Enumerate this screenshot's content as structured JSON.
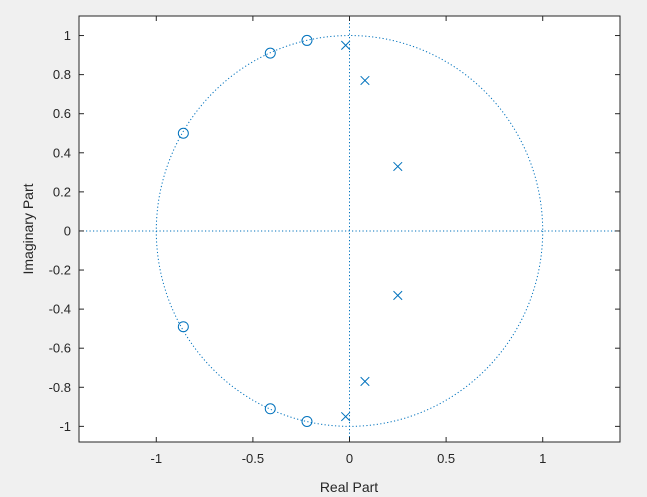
{
  "chart_data": {
    "type": "scatter",
    "title": "",
    "xlabel": "Real Part",
    "ylabel": "Imaginary Part",
    "xlim": [
      -1.4,
      1.4
    ],
    "ylim": [
      -1.08,
      1.1
    ],
    "x_ticks": [
      -1,
      -0.5,
      0,
      0.5,
      1
    ],
    "x_tick_labels": [
      "-1",
      "-0.5",
      "0",
      "0.5",
      "1"
    ],
    "y_ticks": [
      1,
      0.8,
      0.6,
      0.4,
      0.2,
      0,
      -0.2,
      -0.4,
      -0.6,
      -0.8,
      -1
    ],
    "y_tick_labels": [
      "1",
      "0.8",
      "0.6",
      "0.4",
      "0.2",
      "0",
      "-0.2",
      "-0.4",
      "-0.6",
      "-0.8",
      "-1"
    ],
    "grid": false,
    "unit_circle": true,
    "reference_lines": [
      "x=0",
      "y=0"
    ],
    "color": "#0072bd",
    "series": [
      {
        "marker": "circle",
        "points": [
          {
            "x": -0.41,
            "y": 0.91
          },
          {
            "x": -0.22,
            "y": 0.975
          },
          {
            "x": -0.86,
            "y": 0.5
          },
          {
            "x": -0.86,
            "y": -0.49
          },
          {
            "x": -0.41,
            "y": -0.91
          },
          {
            "x": -0.22,
            "y": -0.975
          }
        ]
      },
      {
        "marker": "x",
        "points": [
          {
            "x": -0.02,
            "y": 0.95
          },
          {
            "x": 0.08,
            "y": 0.77
          },
          {
            "x": 0.25,
            "y": 0.33
          },
          {
            "x": 0.25,
            "y": -0.33
          },
          {
            "x": 0.08,
            "y": -0.77
          },
          {
            "x": -0.02,
            "y": -0.95
          }
        ]
      }
    ]
  }
}
